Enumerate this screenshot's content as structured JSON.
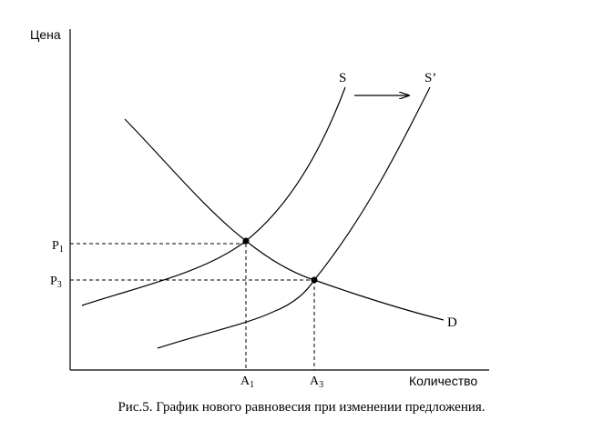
{
  "axes": {
    "y_label": "Цена",
    "x_label": "Количество"
  },
  "curves": {
    "supply": "S",
    "supply_shifted": "S’",
    "demand": "D"
  },
  "price_levels": [
    {
      "letter": "P",
      "sub": "1"
    },
    {
      "letter": "P",
      "sub": "3"
    }
  ],
  "quantity_levels": [
    {
      "letter": "A",
      "sub": "1"
    },
    {
      "letter": "A",
      "sub": "3"
    }
  ],
  "caption": "Рис.5. График нового равновесия при изменении предложения."
}
